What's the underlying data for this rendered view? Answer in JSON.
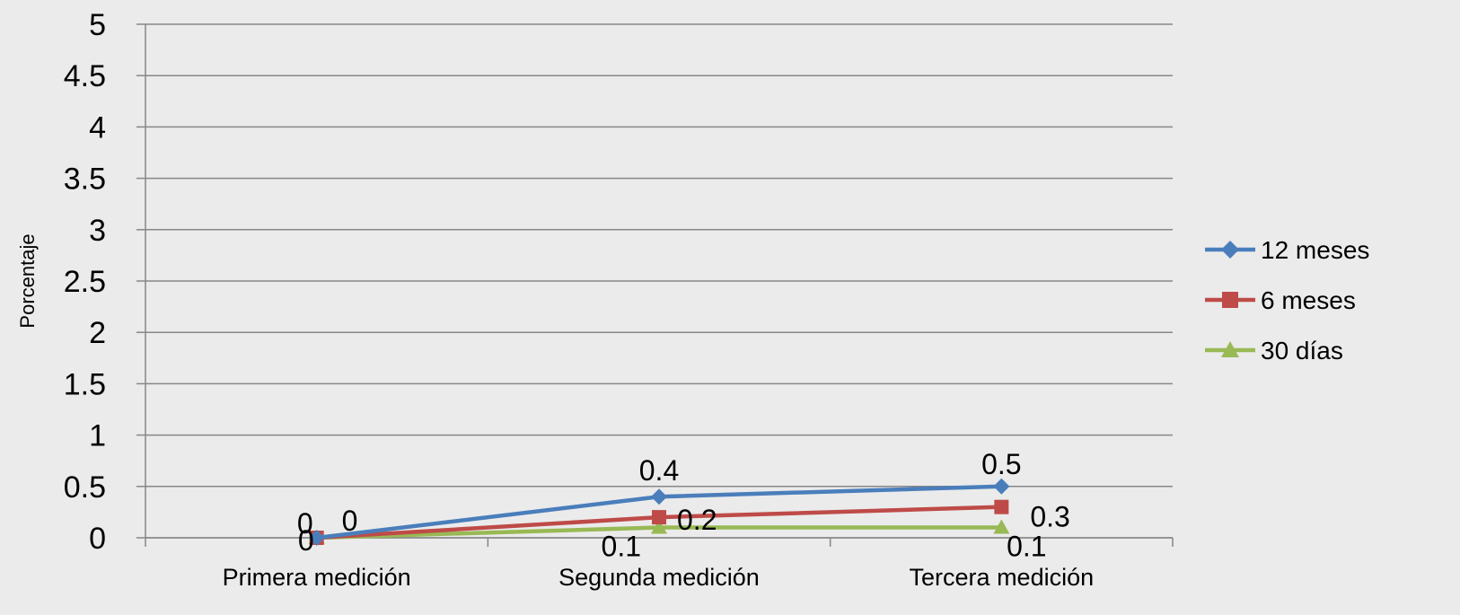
{
  "chart_data": {
    "type": "line",
    "ylabel": "Porcentaje",
    "xlabel": "",
    "ylim": [
      0,
      5
    ],
    "yticks": [
      "0",
      "0.5",
      "1",
      "1.5",
      "2",
      "2.5",
      "3",
      "3.5",
      "4",
      "4.5",
      "5"
    ],
    "categories": [
      "Primera medición",
      "Segunda medición",
      "Tercera medición"
    ],
    "series": [
      {
        "name": "12 meses",
        "values": [
          0,
          0.4,
          0.5
        ],
        "color": "#4a7ebb",
        "marker": "diamond",
        "labels": [
          "0",
          "0.4",
          "0.5"
        ]
      },
      {
        "name": "6 meses",
        "values": [
          0,
          0.2,
          0.3
        ],
        "color": "#be4b48",
        "marker": "square",
        "labels": [
          "0",
          "0.2",
          "0.3"
        ]
      },
      {
        "name": "30 días",
        "values": [
          0,
          0.1,
          0.1
        ],
        "color": "#98b954",
        "marker": "triangle",
        "labels": [
          "0",
          "0.1",
          "0.1"
        ]
      }
    ],
    "grid": true,
    "legend_position": "right"
  }
}
